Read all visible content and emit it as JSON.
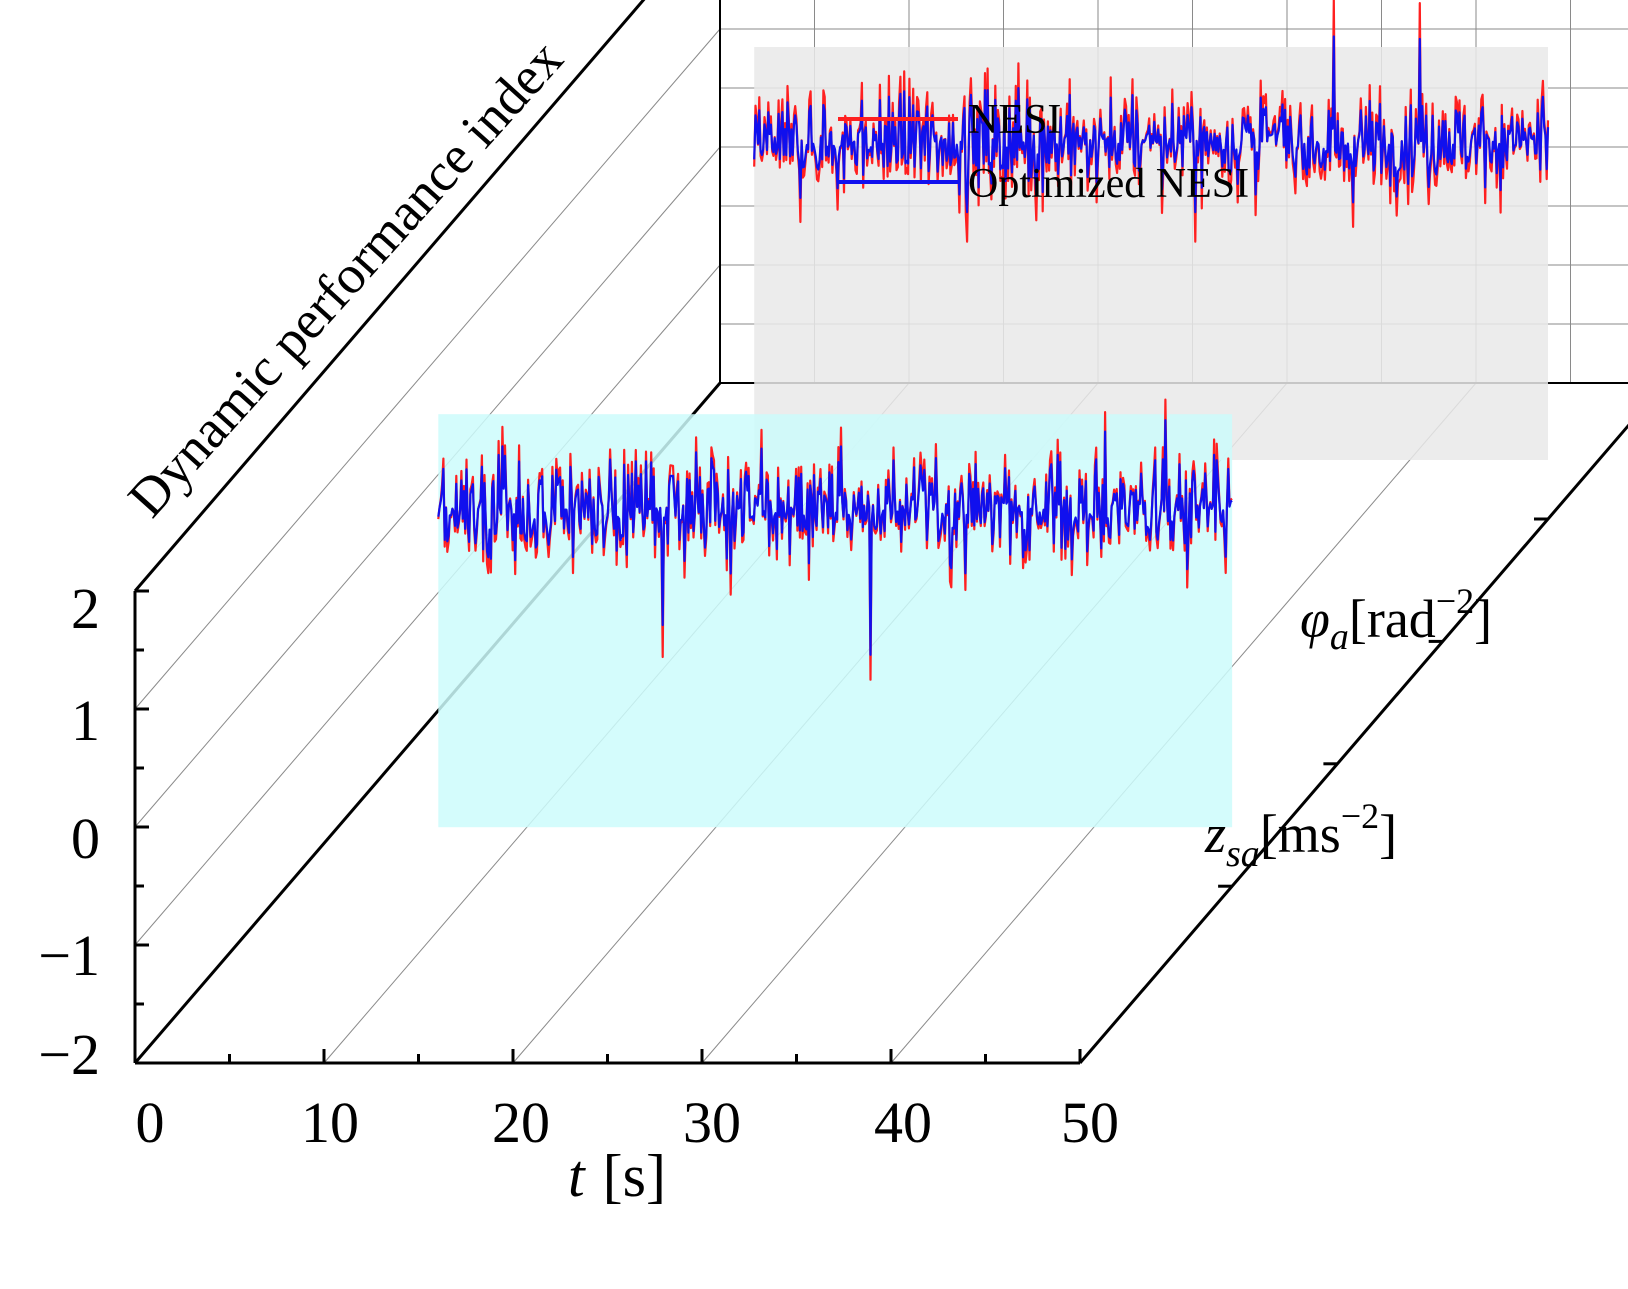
{
  "chart_data": {
    "type": "line",
    "style": "3d-waterfall",
    "title": "",
    "xlabel_var": "t",
    "xlabel_unit": "[s]",
    "zlabel": "Dynamic performance index",
    "xlim": [
      0,
      50
    ],
    "zlim": [
      -2,
      2
    ],
    "x_ticks": [
      "0",
      "10",
      "20",
      "30",
      "40",
      "50"
    ],
    "z_ticks": [
      "2",
      "1",
      "0",
      "−1",
      "−2"
    ],
    "z_tick_values": [
      2,
      1,
      0,
      -1,
      -2
    ],
    "y_categories": [
      {
        "var": "z",
        "sub": "sa",
        "unit_open": "[ms",
        "unit_exp": "−2",
        "unit_close": "]",
        "panel_color": "#ccfcfc"
      },
      {
        "var": "φ",
        "sub": "a",
        "unit_open": "[rad",
        "unit_exp": "−2",
        "unit_close": "]",
        "panel_color": "#e9e9e9"
      }
    ],
    "legend_position": "top-right",
    "series": [
      {
        "name": "NESI",
        "color": "#ff2020",
        "per_category": [
          {
            "category": "z_sa",
            "x_range": [
              8,
              50
            ],
            "mean": 1.2,
            "typical_band": [
              0.6,
              1.8
            ],
            "peak_max": 2.2,
            "peak_min": -0.25
          },
          {
            "category": "phi_a",
            "x_range": [
              8,
              50
            ],
            "mean": 1.2,
            "typical_band": [
              0.7,
              1.9
            ],
            "peak_max": 2.4,
            "peak_min": 0.35
          }
        ]
      },
      {
        "name": "Optimized NESI",
        "color": "#1010ee",
        "per_category": [
          {
            "category": "z_sa",
            "x_range": [
              8,
              50
            ],
            "mean": 1.2,
            "typical_band": [
              0.7,
              1.7
            ],
            "peak_max": 2.15,
            "peak_min": -0.3
          },
          {
            "category": "phi_a",
            "x_range": [
              8,
              50
            ],
            "mean": 1.2,
            "typical_band": [
              0.8,
              1.7
            ],
            "peak_max": 2.2,
            "peak_min": 0.6
          }
        ]
      }
    ]
  }
}
